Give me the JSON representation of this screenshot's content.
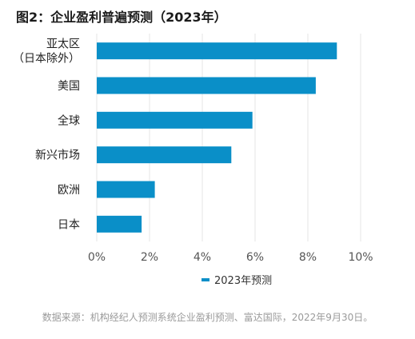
{
  "chart_data": {
    "type": "bar",
    "orientation": "horizontal",
    "title": "图2：企业盈利普遍预测（2023年）",
    "categories": [
      "亚太区\n（日本除外）",
      "美国",
      "全球",
      "新兴市场",
      "欧洲",
      "日本"
    ],
    "series": [
      {
        "name": "2023年预测",
        "values": [
          9.1,
          8.3,
          5.9,
          5.1,
          2.2,
          1.7
        ]
      }
    ],
    "xlim": [
      0,
      10
    ],
    "xticks": [
      "0%",
      "2%",
      "4%",
      "6%",
      "8%",
      "10%"
    ],
    "grid": true,
    "legend_position": "bottom",
    "colors": {
      "bar": "#0a8fc8",
      "grid": "#e6e6e6"
    }
  },
  "source": "数据来源：机构经纪人预测系统企业盈利预测、富达国际，2022年9月30日。"
}
